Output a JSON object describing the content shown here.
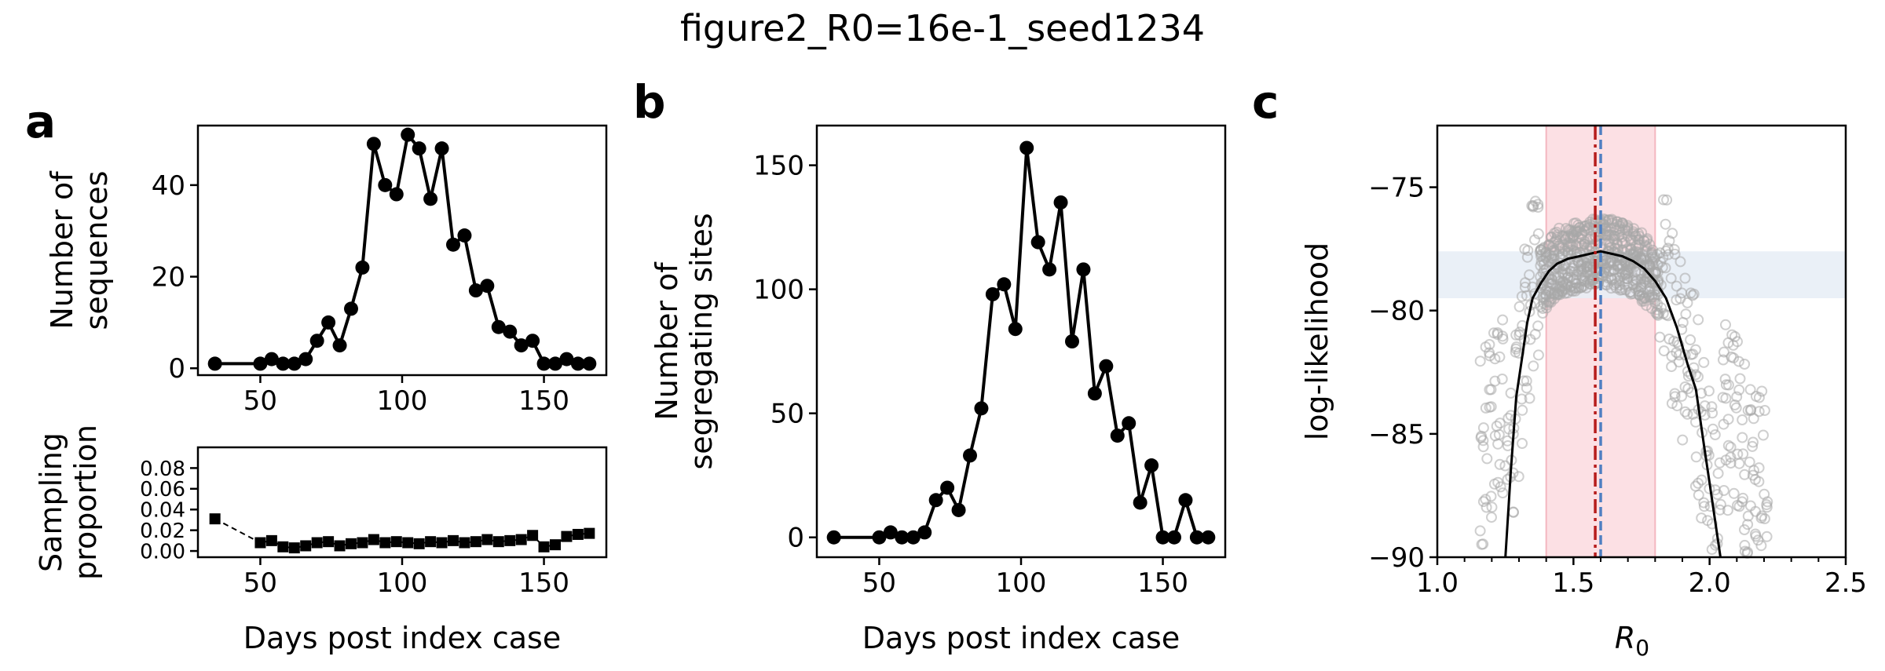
{
  "title": "figure2_R0=16e-1_seed1234",
  "panels": {
    "a": {
      "letter": "a",
      "top": {
        "ylabel_lines": [
          "Number of",
          "sequences"
        ],
        "xticks": [
          50,
          100,
          150
        ],
        "yticks": [
          0,
          20,
          40
        ]
      },
      "bottom": {
        "xlabel": "Days post index case",
        "ylabel_lines": [
          "Sampling",
          "proportion"
        ],
        "xticks": [
          50,
          100,
          150
        ],
        "yticks": [
          "0.00",
          "0.02",
          "0.04",
          "0.06",
          "0.08"
        ]
      }
    },
    "b": {
      "letter": "b",
      "xlabel": "Days post index case",
      "ylabel_lines": [
        "Number of",
        "segregating sites"
      ],
      "xticks": [
        50,
        100,
        150
      ],
      "yticks": [
        0,
        50,
        100,
        150
      ]
    },
    "c": {
      "letter": "c",
      "xlabel_main": "R",
      "xlabel_sub": "0",
      "ylabel": "log-likelihood",
      "xticks": [
        "1.0",
        "1.5",
        "2.0",
        "2.5"
      ],
      "yticks": [
        -75,
        -80,
        -85,
        -90
      ]
    }
  },
  "chart_data": [
    {
      "id": "a-top",
      "type": "line",
      "xlim": [
        28,
        172
      ],
      "ylim": [
        -1.5,
        53
      ],
      "x": [
        34,
        50,
        54,
        58,
        62,
        66,
        70,
        74,
        78,
        82,
        86,
        90,
        94,
        98,
        102,
        106,
        110,
        114,
        118,
        122,
        126,
        130,
        134,
        138,
        142,
        146,
        150,
        154,
        158,
        162,
        166
      ],
      "values": [
        1,
        1,
        2,
        1,
        1,
        2,
        6,
        10,
        5,
        13,
        22,
        49,
        40,
        38,
        51,
        48,
        37,
        48,
        27,
        29,
        17,
        18,
        9,
        8,
        5,
        6,
        1,
        1,
        2,
        1,
        1
      ],
      "color": "#000000"
    },
    {
      "id": "a-bottom",
      "type": "line",
      "xlim": [
        28,
        172
      ],
      "ylim": [
        -0.006,
        0.1
      ],
      "x": [
        34,
        50,
        54,
        58,
        62,
        66,
        70,
        74,
        78,
        82,
        86,
        90,
        94,
        98,
        102,
        106,
        110,
        114,
        118,
        122,
        126,
        130,
        134,
        138,
        142,
        146,
        150,
        154,
        158,
        162,
        166
      ],
      "values": [
        0.031,
        0.008,
        0.01,
        0.004,
        0.003,
        0.005,
        0.008,
        0.009,
        0.005,
        0.007,
        0.008,
        0.011,
        0.008,
        0.009,
        0.008,
        0.007,
        0.009,
        0.008,
        0.01,
        0.008,
        0.009,
        0.011,
        0.009,
        0.01,
        0.011,
        0.015,
        0.004,
        0.006,
        0.014,
        0.016,
        0.017
      ],
      "color": "#000000"
    },
    {
      "id": "b",
      "type": "line",
      "xlim": [
        28,
        172
      ],
      "ylim": [
        -8,
        166
      ],
      "x": [
        34,
        50,
        54,
        58,
        62,
        66,
        70,
        74,
        78,
        82,
        86,
        90,
        94,
        98,
        102,
        106,
        110,
        114,
        118,
        122,
        126,
        130,
        134,
        138,
        142,
        146,
        150,
        154,
        158,
        162,
        166
      ],
      "values": [
        0,
        0,
        2,
        0,
        0,
        2,
        15,
        20,
        11,
        33,
        52,
        98,
        102,
        84,
        157,
        119,
        108,
        135,
        79,
        108,
        58,
        69,
        41,
        46,
        14,
        29,
        0,
        0,
        15,
        0,
        0
      ],
      "color": "#000000"
    },
    {
      "id": "c",
      "type": "line",
      "xlim": [
        1.0,
        2.5
      ],
      "ylim": [
        -90,
        -72.5
      ],
      "mle_line": {
        "x": [
          1.25,
          1.27,
          1.29,
          1.31,
          1.33,
          1.35,
          1.38,
          1.41,
          1.44,
          1.48,
          1.52,
          1.56,
          1.6,
          1.64,
          1.68,
          1.72,
          1.76,
          1.8,
          1.84,
          1.88,
          1.92,
          1.95,
          1.98,
          2.0,
          2.02,
          2.04
        ],
        "values": [
          -90,
          -86.5,
          -83.5,
          -82,
          -80.5,
          -79.5,
          -78.9,
          -78.4,
          -78.1,
          -77.9,
          -77.8,
          -77.7,
          -77.6,
          -77.7,
          -77.8,
          -78.0,
          -78.3,
          -78.8,
          -79.5,
          -80.7,
          -82.2,
          -83.2,
          -85.5,
          -87,
          -88.5,
          -90
        ]
      },
      "ci_band_x": [
        1.4,
        1.8
      ],
      "ci_band_y": [
        -79.5,
        -77.6
      ],
      "true_value": 1.6,
      "estimate": 1.58,
      "colors": {
        "ci_band_x": "#fce0e4",
        "ci_band_y": "#e6edf6",
        "true_line": "#4f7fc2",
        "estimate_line": "#b71c1c",
        "scatter": "#a8a8a8",
        "line": "#000000"
      }
    }
  ]
}
